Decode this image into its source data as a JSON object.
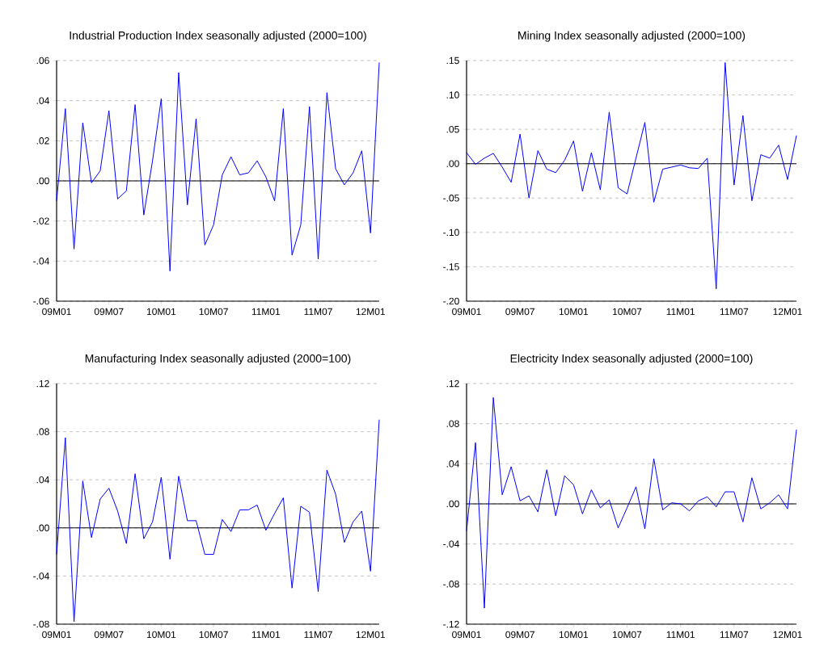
{
  "chart_data": [
    {
      "type": "line",
      "title": "Industrial Production Index seasonally adjusted (2000=100)",
      "categories": [
        "09M01",
        null,
        null,
        null,
        null,
        null,
        "09M07",
        null,
        null,
        null,
        null,
        null,
        "10M01",
        null,
        null,
        null,
        null,
        null,
        "10M07",
        null,
        null,
        null,
        null,
        null,
        "11M01",
        null,
        null,
        null,
        null,
        null,
        "11M07",
        null,
        null,
        null,
        null,
        null,
        "12M01",
        null
      ],
      "series": [
        {
          "color": "#0000ff",
          "values": [
            -0.01,
            0.036,
            -0.034,
            0.029,
            -0.001,
            0.005,
            0.035,
            -0.009,
            -0.005,
            0.038,
            -0.017,
            0.01,
            0.041,
            -0.045,
            0.054,
            -0.012,
            0.031,
            -0.032,
            -0.022,
            0.003,
            0.012,
            0.003,
            0.004,
            0.01,
            0.002,
            -0.01,
            0.036,
            -0.037,
            -0.022,
            0.037,
            -0.039,
            0.044,
            0.006,
            -0.002,
            0.004,
            0.015,
            -0.026,
            0.059
          ]
        }
      ],
      "ylim": [
        -0.06,
        0.06
      ],
      "yticks": [
        {
          "value": -0.06,
          "label": "-.06"
        },
        {
          "value": -0.04,
          "label": "-.04"
        },
        {
          "value": -0.02,
          "label": "-.02"
        },
        {
          "value": 0,
          "label": ".00"
        },
        {
          "value": 0.02,
          "label": ".02"
        },
        {
          "value": 0.04,
          "label": ".04"
        },
        {
          "value": 0.06,
          "label": ".06"
        }
      ],
      "grid": "y",
      "ref_lines": [
        {
          "axis": "y",
          "value": 0,
          "color": "#000000"
        }
      ]
    },
    {
      "type": "line",
      "title": "Mining Index seasonally adjusted (2000=100)",
      "categories": [
        "09M01",
        null,
        null,
        null,
        null,
        null,
        "09M07",
        null,
        null,
        null,
        null,
        null,
        "10M01",
        null,
        null,
        null,
        null,
        null,
        "10M07",
        null,
        null,
        null,
        null,
        null,
        "11M01",
        null,
        null,
        null,
        null,
        null,
        "11M07",
        null,
        null,
        null,
        null,
        null,
        "12M01",
        null
      ],
      "series": [
        {
          "color": "#0000ff",
          "values": [
            0.016,
            -0.001,
            0.008,
            0.015,
            -0.005,
            -0.027,
            0.043,
            -0.05,
            0.019,
            -0.008,
            -0.013,
            0.005,
            0.033,
            -0.04,
            0.016,
            -0.038,
            0.075,
            -0.035,
            -0.044,
            0.008,
            0.06,
            -0.056,
            -0.008,
            -0.005,
            -0.002,
            -0.006,
            -0.007,
            0.008,
            -0.182,
            0.147,
            -0.031,
            0.07,
            -0.054,
            0.013,
            0.008,
            0.027,
            -0.023,
            0.041
          ]
        }
      ],
      "ylim": [
        -0.2,
        0.15
      ],
      "yticks": [
        {
          "value": -0.2,
          "label": "-.20"
        },
        {
          "value": -0.15,
          "label": "-.15"
        },
        {
          "value": -0.1,
          "label": "-.10"
        },
        {
          "value": -0.05,
          "label": "-.05"
        },
        {
          "value": 0,
          "label": ".00"
        },
        {
          "value": 0.05,
          "label": ".05"
        },
        {
          "value": 0.1,
          "label": ".10"
        },
        {
          "value": 0.15,
          "label": ".15"
        }
      ],
      "grid": "y",
      "ref_lines": [
        {
          "axis": "y",
          "value": 0,
          "color": "#000000"
        }
      ]
    },
    {
      "type": "line",
      "title": "Manufacturing Index seasonally adjusted (2000=100)",
      "categories": [
        "09M01",
        null,
        null,
        null,
        null,
        null,
        "09M07",
        null,
        null,
        null,
        null,
        null,
        "10M01",
        null,
        null,
        null,
        null,
        null,
        "10M07",
        null,
        null,
        null,
        null,
        null,
        "11M01",
        null,
        null,
        null,
        null,
        null,
        "11M07",
        null,
        null,
        null,
        null,
        null,
        "12M01",
        null
      ],
      "series": [
        {
          "color": "#0000ff",
          "values": [
            -0.022,
            0.075,
            -0.078,
            0.039,
            -0.008,
            0.024,
            0.033,
            0.014,
            -0.013,
            0.045,
            -0.009,
            0.005,
            0.042,
            -0.026,
            0.043,
            0.006,
            0.006,
            -0.022,
            -0.022,
            0.007,
            -0.003,
            0.015,
            0.015,
            0.019,
            -0.002,
            0.012,
            0.025,
            -0.05,
            0.018,
            0.013,
            -0.053,
            0.048,
            0.028,
            -0.012,
            0.005,
            0.014,
            -0.036,
            0.09
          ]
        }
      ],
      "ylim": [
        -0.08,
        0.12
      ],
      "yticks": [
        {
          "value": -0.08,
          "label": "-.08"
        },
        {
          "value": -0.04,
          "label": "-.04"
        },
        {
          "value": 0,
          "label": ".00"
        },
        {
          "value": 0.04,
          "label": ".04"
        },
        {
          "value": 0.08,
          "label": ".08"
        },
        {
          "value": 0.12,
          "label": ".12"
        }
      ],
      "grid": "y",
      "ref_lines": [
        {
          "axis": "y",
          "value": 0,
          "color": "#000000"
        }
      ]
    },
    {
      "type": "line",
      "title": "Electricity Index seasonally adjusted (2000=100)",
      "categories": [
        "09M01",
        null,
        null,
        null,
        null,
        null,
        "09M07",
        null,
        null,
        null,
        null,
        null,
        "10M01",
        null,
        null,
        null,
        null,
        null,
        "10M07",
        null,
        null,
        null,
        null,
        null,
        "11M01",
        null,
        null,
        null,
        null,
        null,
        "11M07",
        null,
        null,
        null,
        null,
        null,
        "12M01",
        null
      ],
      "series": [
        {
          "color": "#0000ff",
          "values": [
            -0.027,
            0.061,
            -0.104,
            0.106,
            0.009,
            0.037,
            0.003,
            0.008,
            -0.008,
            0.034,
            -0.012,
            0.028,
            0.019,
            -0.01,
            0.014,
            -0.004,
            0.004,
            -0.024,
            -0.004,
            0.017,
            -0.025,
            0.045,
            -0.006,
            0.001,
            0.0,
            -0.007,
            0.003,
            0.007,
            -0.003,
            0.012,
            0.012,
            -0.018,
            0.026,
            -0.005,
            0.001,
            0.009,
            -0.005,
            0.074
          ]
        }
      ],
      "ylim": [
        -0.12,
        0.12
      ],
      "yticks": [
        {
          "value": -0.12,
          "label": "-.12"
        },
        {
          "value": -0.08,
          "label": "-.08"
        },
        {
          "value": -0.04,
          "label": "-.04"
        },
        {
          "value": 0,
          "label": ".00"
        },
        {
          "value": 0.04,
          "label": ".04"
        },
        {
          "value": 0.08,
          "label": ".08"
        },
        {
          "value": 0.12,
          "label": ".12"
        }
      ],
      "grid": "y",
      "ref_lines": [
        {
          "axis": "y",
          "value": 0,
          "color": "#000000"
        }
      ]
    }
  ]
}
